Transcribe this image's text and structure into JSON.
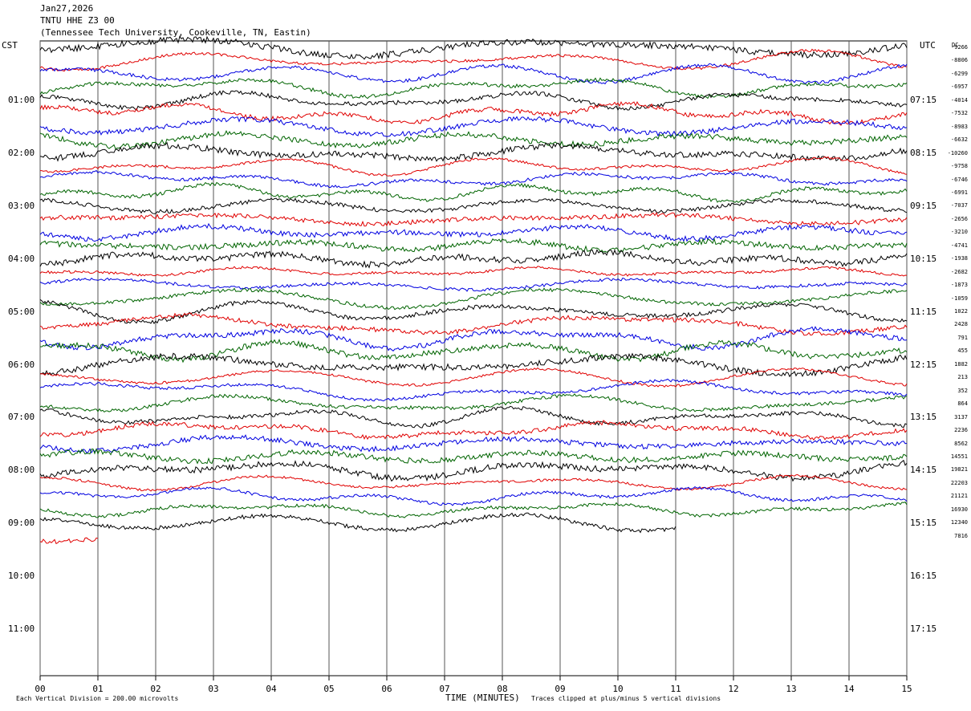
{
  "header": {
    "date": "Jan27,2026",
    "station": "TNTU HHE Z3 00",
    "location": "(Tennessee Tech University, Cookeville, TN, Eastin)"
  },
  "corners": {
    "left_tz": "CST",
    "right_tz": "UTC",
    "dc_label": "DC"
  },
  "chart_data": {
    "type": "line",
    "title": "TNTU HHE Z3 00",
    "xlabel": "TIME (MINUTES)",
    "xlim": [
      0,
      15
    ],
    "x_ticks": [
      "00",
      "01",
      "02",
      "03",
      "04",
      "05",
      "06",
      "07",
      "08",
      "09",
      "10",
      "11",
      "12",
      "13",
      "14",
      "15"
    ],
    "grid": "vertical lines at each minute",
    "left_time_labels": [
      "01:00",
      "02:00",
      "03:00",
      "04:00",
      "05:00",
      "06:00",
      "07:00",
      "08:00",
      "09:00",
      "10:00",
      "11:00"
    ],
    "right_time_labels": [
      "07:15",
      "08:15",
      "09:15",
      "10:15",
      "11:15",
      "12:15",
      "13:15",
      "14:15",
      "15:15",
      "16:15",
      "17:15"
    ],
    "trace_colors": [
      "#000000",
      "#e00000",
      "#0000e0",
      "#006400"
    ],
    "dc_offsets": [
      "-9266",
      "-8806",
      "-6299",
      "-6957",
      "-4014",
      "-7532",
      "-8983",
      "-6632",
      "-10260",
      "-9758",
      "-6746",
      "-6991",
      "-7037",
      "-2656",
      "-3210",
      "-4741",
      "-1938",
      "-2682",
      "-1873",
      "-1059",
      "1022",
      "2428",
      "791",
      "455",
      "1882",
      "213",
      "352",
      "864",
      "3137",
      "2236",
      "8562",
      "14551",
      "19821",
      "22203",
      "21121",
      "16930",
      "12340",
      "7816"
    ],
    "traces_count": 38,
    "last_trace_end_minute": 11,
    "footer_left": "Each Vertical Division =  200.00 microvolts",
    "footer_right": "Traces clipped at plus/minus 5 vertical divisions"
  }
}
